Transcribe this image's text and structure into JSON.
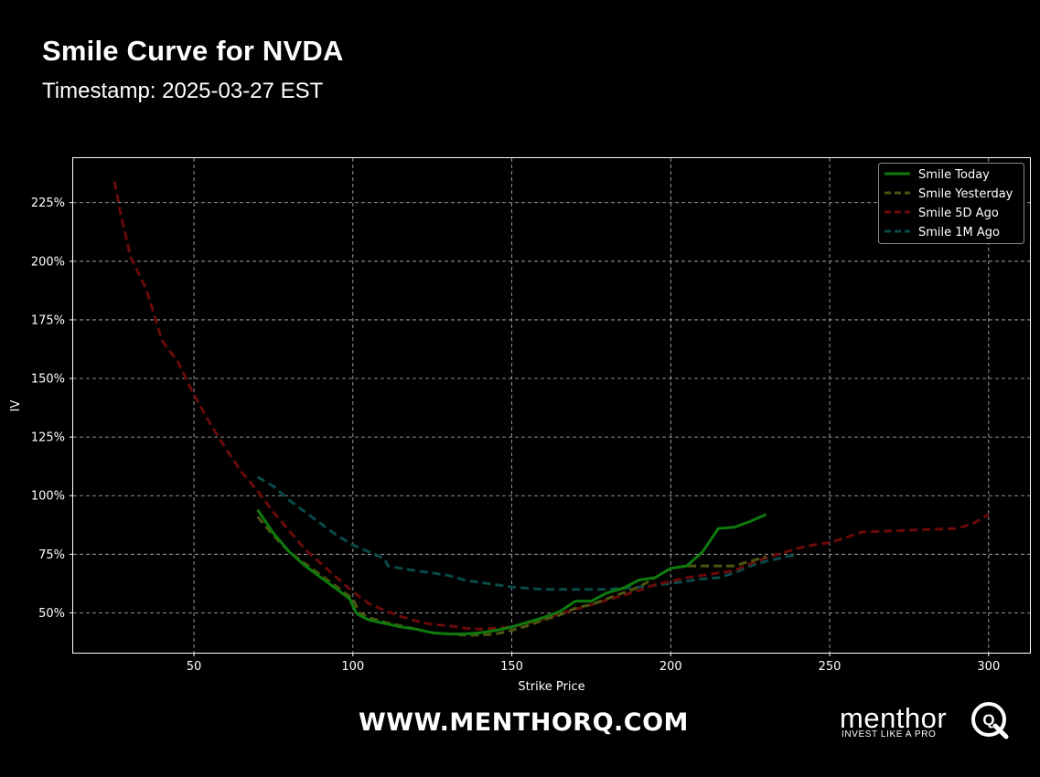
{
  "title": "Smile Curve for NVDA",
  "subtitle": "Timestamp: 2025-03-27 EST",
  "footer": {
    "url": "WWW.MENTHORQ.COM",
    "brand": "menthor",
    "brand_mark": "Q",
    "tagline": "INVEST LIKE A PRO"
  },
  "chart_data": {
    "type": "line",
    "xlabel": "Strike Price",
    "ylabel": "IV",
    "xlim": [
      12,
      313
    ],
    "ylim": [
      0.33,
      2.44
    ],
    "xticks": [
      50,
      100,
      150,
      200,
      250,
      300
    ],
    "yticks": [
      0.5,
      0.75,
      1.0,
      1.25,
      1.5,
      1.75,
      2.0,
      2.25
    ],
    "ytick_labels": [
      "50%",
      "75%",
      "100%",
      "125%",
      "150%",
      "175%",
      "200%",
      "225%"
    ],
    "grid": true,
    "legend_position": "top-right",
    "series": [
      {
        "name": "Smile Today",
        "color": "#0e7a0e",
        "dash": "solid",
        "points": [
          [
            70,
            0.94
          ],
          [
            75,
            0.84
          ],
          [
            80,
            0.76
          ],
          [
            85,
            0.7
          ],
          [
            90,
            0.65
          ],
          [
            95,
            0.6
          ],
          [
            99,
            0.56
          ],
          [
            100,
            0.53
          ],
          [
            101,
            0.5
          ],
          [
            102,
            0.49
          ],
          [
            105,
            0.47
          ],
          [
            110,
            0.455
          ],
          [
            115,
            0.44
          ],
          [
            120,
            0.43
          ],
          [
            125,
            0.415
          ],
          [
            130,
            0.41
          ],
          [
            135,
            0.41
          ],
          [
            140,
            0.415
          ],
          [
            145,
            0.425
          ],
          [
            150,
            0.44
          ],
          [
            155,
            0.46
          ],
          [
            160,
            0.48
          ],
          [
            165,
            0.505
          ],
          [
            170,
            0.55
          ],
          [
            175,
            0.55
          ],
          [
            180,
            0.585
          ],
          [
            185,
            0.605
          ],
          [
            190,
            0.64
          ],
          [
            195,
            0.65
          ],
          [
            200,
            0.69
          ],
          [
            205,
            0.7
          ],
          [
            210,
            0.76
          ],
          [
            215,
            0.86
          ],
          [
            220,
            0.865
          ],
          [
            225,
            0.89
          ],
          [
            230,
            0.92
          ]
        ]
      },
      {
        "name": "Smile Yesterday",
        "color": "#4d5410",
        "dash": "dashed",
        "points": [
          [
            70,
            0.91
          ],
          [
            75,
            0.83
          ],
          [
            80,
            0.76
          ],
          [
            85,
            0.71
          ],
          [
            90,
            0.66
          ],
          [
            95,
            0.61
          ],
          [
            100,
            0.56
          ],
          [
            102,
            0.5
          ],
          [
            105,
            0.48
          ],
          [
            110,
            0.46
          ],
          [
            115,
            0.445
          ],
          [
            120,
            0.43
          ],
          [
            125,
            0.415
          ],
          [
            130,
            0.41
          ],
          [
            135,
            0.405
          ],
          [
            140,
            0.405
          ],
          [
            145,
            0.41
          ],
          [
            150,
            0.425
          ],
          [
            155,
            0.445
          ],
          [
            160,
            0.47
          ],
          [
            165,
            0.49
          ],
          [
            170,
            0.52
          ],
          [
            175,
            0.535
          ],
          [
            180,
            0.56
          ],
          [
            185,
            0.585
          ],
          [
            190,
            0.61
          ],
          [
            195,
            0.65
          ],
          [
            200,
            0.69
          ],
          [
            205,
            0.7
          ],
          [
            210,
            0.7
          ],
          [
            215,
            0.7
          ],
          [
            220,
            0.7
          ],
          [
            225,
            0.72
          ],
          [
            230,
            0.74
          ]
        ]
      },
      {
        "name": "Smile 5D Ago",
        "color": "#6b0a0a",
        "dash": "dashed",
        "points": [
          [
            25,
            2.34
          ],
          [
            27,
            2.2
          ],
          [
            30,
            2.02
          ],
          [
            35,
            1.88
          ],
          [
            40,
            1.66
          ],
          [
            45,
            1.57
          ],
          [
            50,
            1.43
          ],
          [
            55,
            1.31
          ],
          [
            60,
            1.2
          ],
          [
            65,
            1.1
          ],
          [
            70,
            1.02
          ],
          [
            75,
            0.93
          ],
          [
            80,
            0.85
          ],
          [
            85,
            0.77
          ],
          [
            90,
            0.71
          ],
          [
            95,
            0.65
          ],
          [
            100,
            0.59
          ],
          [
            105,
            0.54
          ],
          [
            110,
            0.51
          ],
          [
            115,
            0.485
          ],
          [
            120,
            0.465
          ],
          [
            125,
            0.45
          ],
          [
            130,
            0.445
          ],
          [
            135,
            0.435
          ],
          [
            140,
            0.43
          ],
          [
            145,
            0.435
          ],
          [
            150,
            0.44
          ],
          [
            155,
            0.455
          ],
          [
            160,
            0.475
          ],
          [
            165,
            0.495
          ],
          [
            170,
            0.515
          ],
          [
            175,
            0.535
          ],
          [
            180,
            0.555
          ],
          [
            185,
            0.575
          ],
          [
            190,
            0.595
          ],
          [
            195,
            0.62
          ],
          [
            200,
            0.635
          ],
          [
            205,
            0.65
          ],
          [
            210,
            0.66
          ],
          [
            215,
            0.67
          ],
          [
            220,
            0.68
          ],
          [
            225,
            0.71
          ],
          [
            230,
            0.735
          ],
          [
            235,
            0.755
          ],
          [
            240,
            0.775
          ],
          [
            245,
            0.79
          ],
          [
            250,
            0.8
          ],
          [
            255,
            0.82
          ],
          [
            260,
            0.845
          ],
          [
            270,
            0.85
          ],
          [
            280,
            0.855
          ],
          [
            290,
            0.86
          ],
          [
            295,
            0.88
          ],
          [
            300,
            0.92
          ]
        ]
      },
      {
        "name": "Smile 1M Ago",
        "color": "#0a4a4a",
        "dash": "dashed",
        "points": [
          [
            70,
            1.08
          ],
          [
            75,
            1.04
          ],
          [
            80,
            0.98
          ],
          [
            85,
            0.93
          ],
          [
            90,
            0.88
          ],
          [
            95,
            0.83
          ],
          [
            100,
            0.79
          ],
          [
            105,
            0.76
          ],
          [
            110,
            0.73
          ],
          [
            111,
            0.7
          ],
          [
            115,
            0.69
          ],
          [
            120,
            0.68
          ],
          [
            125,
            0.67
          ],
          [
            130,
            0.66
          ],
          [
            135,
            0.64
          ],
          [
            140,
            0.63
          ],
          [
            145,
            0.62
          ],
          [
            150,
            0.61
          ],
          [
            160,
            0.6
          ],
          [
            170,
            0.6
          ],
          [
            180,
            0.6
          ],
          [
            190,
            0.61
          ],
          [
            200,
            0.625
          ],
          [
            205,
            0.635
          ],
          [
            210,
            0.645
          ],
          [
            215,
            0.65
          ],
          [
            220,
            0.67
          ],
          [
            225,
            0.7
          ],
          [
            230,
            0.72
          ],
          [
            235,
            0.735
          ],
          [
            240,
            0.75
          ]
        ]
      }
    ]
  }
}
